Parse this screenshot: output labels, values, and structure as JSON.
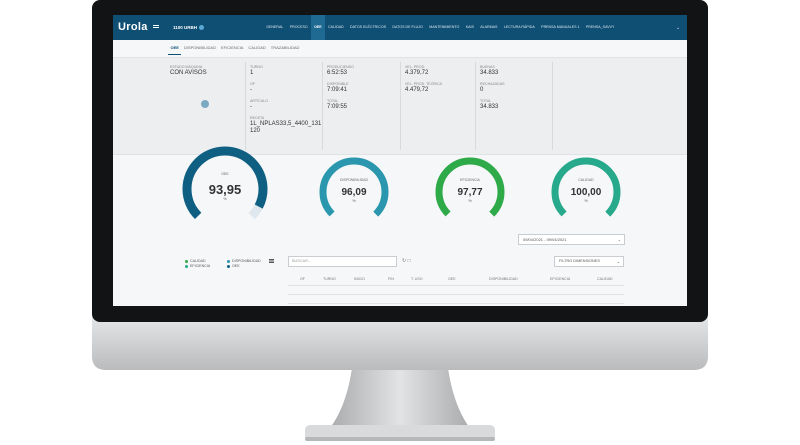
{
  "nav": {
    "brand": "Urola",
    "machine": "1100 URBH",
    "menu": [
      "GENERAL",
      "PROCESO",
      "OEE",
      "CALIDAD",
      "DATOS ELÉCTRICOS",
      "DATOS DE FLUJO",
      "MANTENIMIENTO",
      "KAIS",
      "ALARMAS",
      "LECTURA RÁPIDA",
      "PRENSA MANUALES 1",
      "PRENSA_SAVVY"
    ]
  },
  "tabs": [
    "OEE",
    "DISPONIBILIDAD",
    "EFICIENCIA",
    "CALIDAD",
    "TRAZABILIDAD"
  ],
  "info": {
    "estado": {
      "label": "ESTADO MÁQUINA",
      "value": "CON AVISOS"
    },
    "columns": [
      [
        {
          "label": "TURNO",
          "value": "1"
        },
        {
          "label": "OF",
          "value": "-"
        },
        {
          "label": "ARTÍCULO",
          "value": "-"
        },
        {
          "label": "RECETA",
          "value": "1L_NPLAS33,5_4400_131120"
        }
      ],
      [
        {
          "label": "PRODUCIENDO",
          "value": "6:52:53"
        },
        {
          "label": "DISPONIBLE",
          "value": "7:09:41"
        },
        {
          "label": "TOTAL",
          "value": "7:09:55"
        }
      ],
      [
        {
          "label": "VEL. PROD.",
          "value": "4.379,72"
        },
        {
          "label": "VEL. PROD. TEÓRICA",
          "value": "4.479,72"
        }
      ],
      [
        {
          "label": "BUENAS",
          "value": "34.833"
        },
        {
          "label": "RECHAZADAS",
          "value": "0"
        },
        {
          "label": "TOTAL",
          "value": "34.833"
        }
      ]
    ]
  },
  "gauges": [
    {
      "label": "OEE",
      "value": "93,95",
      "unit": "%"
    },
    {
      "label": "DISPONIBILIDAD",
      "value": "96,09",
      "unit": "%"
    },
    {
      "label": "EFICIENCIA",
      "value": "97,77",
      "unit": "%"
    },
    {
      "label": "CALIDAD",
      "value": "100,00",
      "unit": "%"
    }
  ],
  "date_range": "09/04/2021 - 09/04/2021",
  "legend": [
    "CALIDAD",
    "DISPONIBILIDAD",
    "EFICIENCIA",
    "OEE"
  ],
  "search_placeholder": "BUSCAR...",
  "filter": "FILTRO DIMENSIONES",
  "table": {
    "headers": [
      "OF",
      "TURNO",
      "INICIO",
      "FIN",
      "T. USO",
      "OEE",
      "DISPONIBILIDAD",
      "EFICIENCIA",
      "CALIDAD"
    ]
  }
}
